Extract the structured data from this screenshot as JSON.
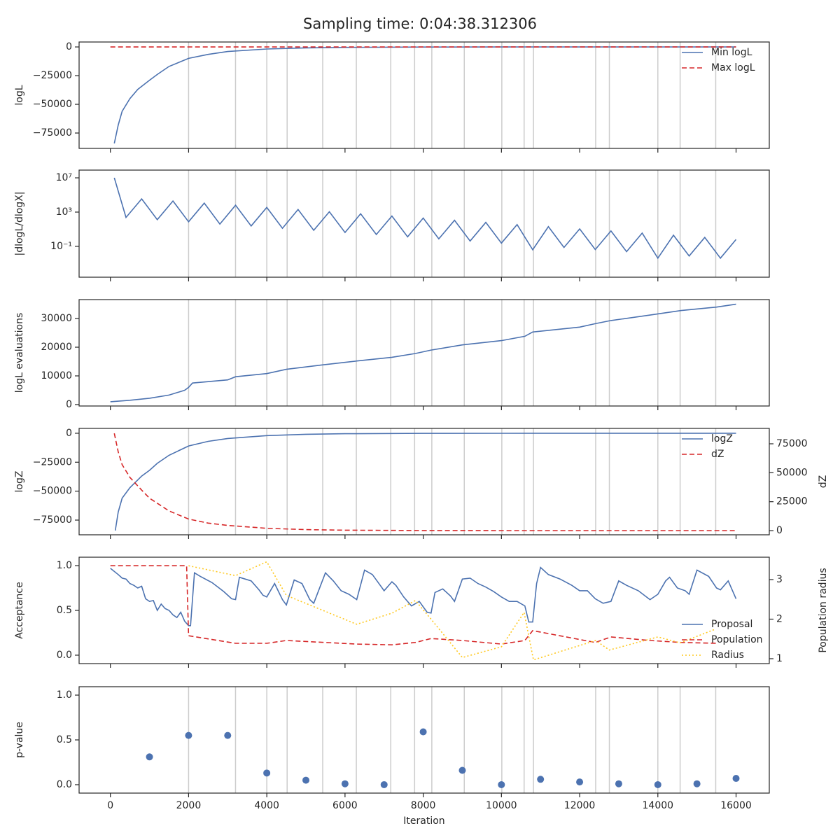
{
  "title": "Sampling time: 0:04:38.312306",
  "chart_data": [
    {
      "type": "line",
      "ylabel": "logL",
      "xlim": [
        -800,
        16850
      ],
      "ylim": [
        -88400,
        4300
      ],
      "xticks": [
        0,
        2000,
        4000,
        6000,
        8000,
        10000,
        12000,
        14000,
        16000
      ],
      "show_xticklabels": false,
      "yticks": [
        0,
        {
          "value": -25000,
          "label": "−25000"
        },
        {
          "value": -50000,
          "label": "−50000"
        },
        {
          "value": -75000,
          "label": "−75000"
        }
      ],
      "vlines": [
        2000,
        3200,
        4000,
        4520,
        5430,
        6290,
        7170,
        7780,
        8220,
        9050,
        10010,
        10580,
        10820,
        12410,
        12760,
        14000,
        14570,
        15480
      ],
      "legend": "upper right",
      "series": [
        {
          "name": "Min logL",
          "color": "#4c72b0",
          "style": "solid",
          "x": [
            100,
            200,
            300,
            500,
            700,
            1000,
            1200,
            1500,
            2000,
            2500,
            3000,
            4000,
            5000,
            6000,
            8000,
            10000,
            12000,
            16000
          ],
          "values": [
            -84000,
            -68000,
            -56000,
            -45000,
            -37000,
            -29000,
            -24000,
            -17000,
            -10000,
            -6500,
            -4000,
            -1800,
            -800,
            -400,
            -100,
            -30,
            -10,
            0
          ]
        },
        {
          "name": "Max logL",
          "color": "#d62728",
          "style": "dashed",
          "x": [
            0,
            16000
          ],
          "values": [
            0,
            0
          ]
        }
      ]
    },
    {
      "type": "line",
      "ylabel": "|dlogL/dlogX|",
      "log": true,
      "xlim": [
        -800,
        16850
      ],
      "ylim": [
        2.5e-05,
        80000000
      ],
      "xticks": [
        0,
        2000,
        4000,
        6000,
        8000,
        10000,
        12000,
        14000,
        16000
      ],
      "show_xticklabels": false,
      "yticks": [
        {
          "value": 10000000,
          "label": "10⁷"
        },
        {
          "value": 1000,
          "label": "10³"
        },
        {
          "value": 0.1,
          "label": "10⁻¹"
        }
      ],
      "vlines": [
        2000,
        3200,
        4000,
        4520,
        5430,
        6290,
        7170,
        7780,
        8220,
        9050,
        10010,
        10580,
        10820,
        12410,
        12760,
        14000,
        14570,
        15480
      ],
      "series": [
        {
          "name": "|dlogL/dlogX|",
          "color": "#4c72b0",
          "style": "solid",
          "x": [
            100,
            400,
            800,
            1200,
            1600,
            2000,
            2400,
            2800,
            3200,
            3600,
            4000,
            4400,
            4800,
            5200,
            5600,
            6000,
            6400,
            6800,
            7200,
            7600,
            8000,
            8400,
            8800,
            9200,
            9600,
            10000,
            10400,
            10800,
            11200,
            11600,
            12000,
            12400,
            12800,
            13200,
            13600,
            14000,
            14400,
            14800,
            15200,
            15600,
            16000
          ],
          "values": [
            10000000,
            240,
            35000,
            130,
            20000,
            75,
            11000,
            40,
            6300,
            24,
            3500,
            13,
            2000,
            7.5,
            1100,
            4.2,
            630,
            2.4,
            350,
            1.3,
            200,
            0.75,
            110,
            0.42,
            63,
            0.24,
            35,
            0.04,
            20,
            0.075,
            11,
            0.042,
            6.3,
            0.024,
            3.5,
            0.0042,
            2,
            0.0075,
            1.1,
            0.0042,
            0.63
          ]
        }
      ]
    },
    {
      "type": "line",
      "ylabel": "logL evaluations",
      "xlim": [
        -800,
        16850
      ],
      "ylim": [
        -500,
        36600
      ],
      "xticks": [
        0,
        2000,
        4000,
        6000,
        8000,
        10000,
        12000,
        14000,
        16000
      ],
      "show_xticklabels": false,
      "yticks": [
        0,
        10000,
        20000,
        30000
      ],
      "vlines": [
        2000,
        3200,
        4000,
        4520,
        5430,
        6290,
        7170,
        7780,
        8220,
        9050,
        10010,
        10580,
        10820,
        12410,
        12760,
        14000,
        14570,
        15480
      ],
      "series": [
        {
          "name": "logL evaluations",
          "color": "#4c72b0",
          "style": "solid",
          "x": [
            0,
            500,
            1000,
            1500,
            1900,
            2000,
            2100,
            3000,
            3200,
            4000,
            4500,
            5400,
            6300,
            7200,
            7800,
            8200,
            9000,
            10000,
            10600,
            10800,
            12000,
            12400,
            12800,
            13800,
            14600,
            15500,
            16000
          ],
          "values": [
            1000,
            1500,
            2200,
            3300,
            5000,
            6000,
            7500,
            8600,
            9700,
            10800,
            12300,
            13800,
            15200,
            16500,
            17800,
            19000,
            20800,
            22300,
            23800,
            25300,
            27000,
            28200,
            29300,
            31200,
            32800,
            34000,
            35000
          ]
        }
      ]
    },
    {
      "type": "line",
      "ylabel": "logZ",
      "y2label": "dZ",
      "xlim": [
        -800,
        16850
      ],
      "ylim": [
        -87700,
        4200
      ],
      "y2lim": [
        -3600,
        88300
      ],
      "xticks": [
        0,
        2000,
        4000,
        6000,
        8000,
        10000,
        12000,
        14000,
        16000
      ],
      "show_xticklabels": false,
      "yticks": [
        0,
        {
          "value": -25000,
          "label": "−25000"
        },
        {
          "value": -50000,
          "label": "−50000"
        },
        {
          "value": -75000,
          "label": "−75000"
        }
      ],
      "y2ticks": [
        0,
        25000,
        50000,
        75000
      ],
      "vlines": [
        2000,
        3200,
        4000,
        4520,
        5430,
        6290,
        7170,
        7780,
        8220,
        9050,
        10010,
        10580,
        10820,
        12410,
        12760,
        14000,
        14570,
        15480
      ],
      "legend": "upper right",
      "series": [
        {
          "name": "logZ",
          "color": "#4c72b0",
          "style": "solid",
          "x": [
            125,
            200,
            300,
            500,
            800,
            1000,
            1200,
            1500,
            2000,
            2500,
            3000,
            4000,
            5000,
            6000,
            8000,
            10000,
            16000
          ],
          "values": [
            -84000,
            -68000,
            -56000,
            -47000,
            -37000,
            -32000,
            -26000,
            -19000,
            -11000,
            -7000,
            -4500,
            -2000,
            -900,
            -400,
            -100,
            -20,
            0
          ]
        },
        {
          "name": "dZ",
          "color": "#d62728",
          "style": "dashed",
          "axis": "y2",
          "x": [
            100,
            200,
            300,
            500,
            800,
            1000,
            1500,
            2000,
            2500,
            3000,
            4000,
            5000,
            6000,
            8000,
            10000,
            16000
          ],
          "values": [
            84000,
            68000,
            57000,
            46000,
            35000,
            28000,
            17000,
            10000,
            6500,
            4500,
            2000,
            900,
            400,
            100,
            30,
            0
          ]
        }
      ]
    },
    {
      "type": "line",
      "ylabel": "Acceptance",
      "y2label": "Population radius",
      "xlim": [
        -800,
        16850
      ],
      "ylim": [
        -0.094,
        1.094
      ],
      "y2lim": [
        0.876,
        3.566
      ],
      "xticks": [
        0,
        2000,
        4000,
        6000,
        8000,
        10000,
        12000,
        14000,
        16000
      ],
      "show_xticklabels": false,
      "yticks": [
        {
          "value": 0,
          "label": "0.0"
        },
        0.5,
        {
          "value": 1,
          "label": "1.0"
        }
      ],
      "y2ticks": [
        1,
        2,
        3
      ],
      "legend": "lower right",
      "series": [
        {
          "name": "Proposal",
          "color": "#4c72b0",
          "style": "solid",
          "x": [
            0,
            200,
            300,
            400,
            500,
            600,
            700,
            800,
            900,
            1000,
            1100,
            1200,
            1300,
            1400,
            1500,
            1600,
            1700,
            1800,
            1900,
            2000,
            2050,
            2150,
            2300,
            2600,
            2900,
            3100,
            3200,
            3300,
            3600,
            3800,
            3900,
            4000,
            4200,
            4400,
            4500,
            4700,
            4900,
            5100,
            5200,
            5500,
            5700,
            5900,
            6100,
            6300,
            6500,
            6700,
            6900,
            7000,
            7200,
            7300,
            7500,
            7700,
            7900,
            8100,
            8200,
            8300,
            8500,
            8700,
            8800,
            9000,
            9200,
            9400,
            9600,
            9800,
            10000,
            10200,
            10400,
            10600,
            10700,
            10800,
            10900,
            11000,
            11200,
            11500,
            11800,
            12000,
            12200,
            12400,
            12600,
            12800,
            13000,
            13200,
            13500,
            13800,
            14000,
            14200,
            14300,
            14500,
            14700,
            14800,
            15000,
            15300,
            15500,
            15600,
            15800,
            16000
          ],
          "values": [
            0.97,
            0.9,
            0.86,
            0.85,
            0.8,
            0.78,
            0.75,
            0.77,
            0.63,
            0.6,
            0.61,
            0.5,
            0.57,
            0.52,
            0.5,
            0.45,
            0.42,
            0.48,
            0.38,
            0.33,
            0.33,
            0.92,
            0.88,
            0.81,
            0.71,
            0.63,
            0.62,
            0.87,
            0.83,
            0.73,
            0.67,
            0.65,
            0.8,
            0.62,
            0.56,
            0.84,
            0.8,
            0.62,
            0.58,
            0.92,
            0.83,
            0.72,
            0.68,
            0.62,
            0.95,
            0.9,
            0.78,
            0.72,
            0.82,
            0.78,
            0.65,
            0.55,
            0.6,
            0.48,
            0.47,
            0.7,
            0.74,
            0.66,
            0.6,
            0.85,
            0.86,
            0.8,
            0.76,
            0.71,
            0.65,
            0.6,
            0.6,
            0.55,
            0.37,
            0.37,
            0.8,
            0.98,
            0.9,
            0.85,
            0.78,
            0.72,
            0.72,
            0.63,
            0.58,
            0.6,
            0.83,
            0.78,
            0.72,
            0.62,
            0.68,
            0.83,
            0.87,
            0.75,
            0.72,
            0.68,
            0.95,
            0.88,
            0.75,
            0.73,
            0.83,
            0.63
          ]
        },
        {
          "name": "Population",
          "color": "#d62728",
          "style": "dashed",
          "axis": "y2",
          "x": [
            0,
            1950,
            2000,
            3200,
            4000,
            4500,
            6300,
            7200,
            7800,
            8200,
            9000,
            10000,
            10600,
            10800,
            12400,
            12800,
            13800,
            14600,
            15500
          ],
          "values": [
            3.35,
            3.35,
            1.58,
            1.39,
            1.39,
            1.46,
            1.37,
            1.35,
            1.41,
            1.51,
            1.46,
            1.37,
            1.46,
            1.71,
            1.41,
            1.55,
            1.46,
            1.41,
            1.39
          ]
        },
        {
          "name": "Radius",
          "color": "#ffc81e",
          "style": "dotted",
          "axis": "y2",
          "x": [
            2000,
            3200,
            4000,
            4500,
            6300,
            7200,
            7800,
            8200,
            9000,
            10000,
            10580,
            10820,
            12410,
            12760,
            14000,
            14570,
            15480
          ],
          "values": [
            3.35,
            3.1,
            3.45,
            2.6,
            1.87,
            2.15,
            2.47,
            2.0,
            1.03,
            1.3,
            2.17,
            0.97,
            1.46,
            1.22,
            1.55,
            1.4,
            1.75
          ]
        }
      ]
    },
    {
      "type": "scatter",
      "ylabel": "p-value",
      "xlabel": "Iteration",
      "xlim": [
        -800,
        16850
      ],
      "ylim": [
        -0.094,
        1.094
      ],
      "xticks": [
        0,
        2000,
        4000,
        6000,
        8000,
        10000,
        12000,
        14000,
        16000
      ],
      "show_xticklabels": true,
      "yticks": [
        {
          "value": 0,
          "label": "0.0"
        },
        0.5,
        {
          "value": 1,
          "label": "1.0"
        }
      ],
      "vlines": [
        2000,
        3200,
        4000,
        4520,
        5430,
        6290,
        7170,
        7780,
        8220,
        9050,
        10010,
        10580,
        10820,
        12410,
        12760,
        14000,
        14570,
        15480
      ],
      "series": [
        {
          "name": "p-value",
          "color": "#4c72b0",
          "x": [
            1000,
            2000,
            3000,
            4000,
            5000,
            6000,
            7000,
            8000,
            9000,
            10000,
            11000,
            12000,
            13000,
            14000,
            15000,
            16000
          ],
          "values": [
            0.31,
            0.55,
            0.55,
            0.13,
            0.05,
            0.01,
            0.0,
            0.59,
            0.16,
            0.0,
            0.06,
            0.03,
            0.01,
            0.0,
            0.01,
            0.07
          ]
        }
      ]
    }
  ]
}
